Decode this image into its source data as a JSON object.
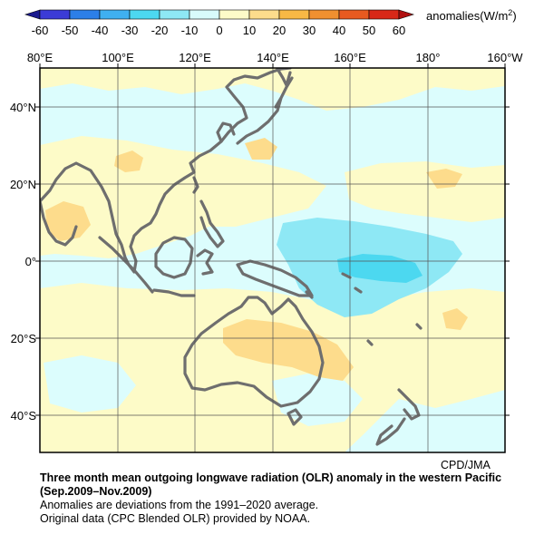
{
  "colorbar": {
    "ticks": [
      "-60",
      "-50",
      "-40",
      "-30",
      "-20",
      "-10",
      "0",
      "10",
      "20",
      "30",
      "40",
      "50",
      "60"
    ],
    "units_label": "anomalies(W/m",
    "units_sup": "2",
    "units_close": ")",
    "colors": [
      "#3b3bd6",
      "#2c7fe8",
      "#3fb0f0",
      "#4cd8f0",
      "#8ee8f5",
      "#d8fbfb",
      "#fdfbc8",
      "#fddc8c",
      "#f8b845",
      "#f09030",
      "#e85a20",
      "#d82818"
    ]
  },
  "map": {
    "lon_labels": [
      "80°E",
      "100°E",
      "120°E",
      "140°E",
      "160°E",
      "180°",
      "160°W"
    ],
    "lat_labels": [
      "40°N",
      "20°N",
      "0°",
      "20°S",
      "40°S"
    ],
    "land_color": "#6e6e6e",
    "background_color": "#dcfdfd"
  },
  "credit": "CPD/JMA",
  "caption": {
    "title": "Three month mean outgoing longwave radiation (OLR) anomaly in the western Pacific",
    "period": "(Sep.2009–Nov.2009)",
    "note1": "Anomalies are deviations from the 1991–2020 average.",
    "note2": "Original data (CPC Blended OLR) provided by NOAA."
  }
}
